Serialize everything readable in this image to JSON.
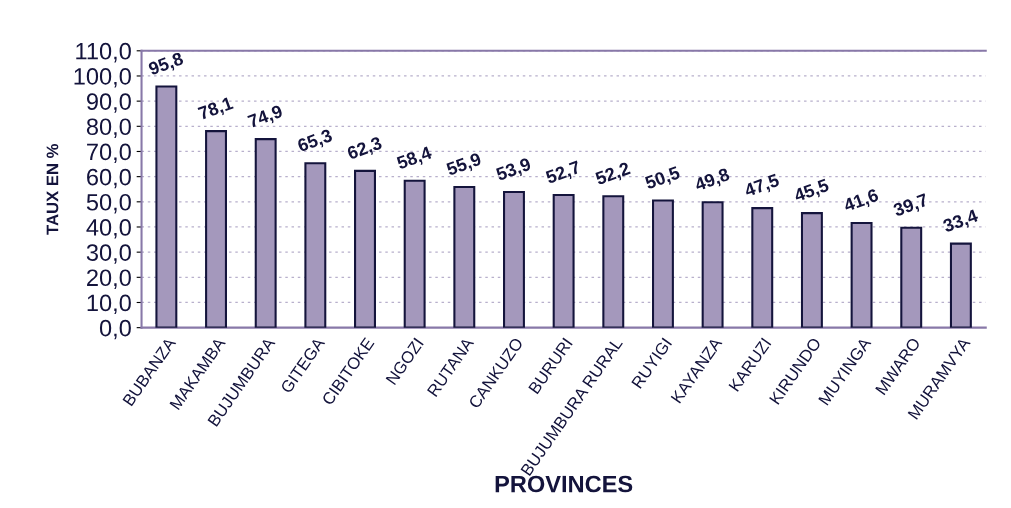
{
  "chart_data": {
    "type": "bar",
    "xlabel": "PROVINCES",
    "ylabel": "TAUX EN %",
    "categories": [
      "BUBANZA",
      "MAKAMBA",
      "BUJUMBURA",
      "GITEGA",
      "CIBITOKE",
      "NGOZI",
      "RUTANA",
      "CANKUZO",
      "BURURI",
      "BUJUMBURA RURAL",
      "RUYIGI",
      "KAYANZA",
      "KARUZI",
      "KIRUNDO",
      "MUYINGA",
      "MWARO",
      "MURAMVYA"
    ],
    "values": [
      95.8,
      78.1,
      74.9,
      65.3,
      62.3,
      58.4,
      55.9,
      53.9,
      52.7,
      52.2,
      50.5,
      49.8,
      47.5,
      45.5,
      41.6,
      39.7,
      33.4
    ],
    "value_labels": [
      "95,8",
      "78,1",
      "74,9",
      "65,3",
      "62,3",
      "58,4",
      "55,9",
      "53,9",
      "52,7",
      "52,2",
      "50,5",
      "49,8",
      "47,5",
      "45,5",
      "41,6",
      "39,7",
      "33,4"
    ],
    "color": "#a498bc",
    "ylim": [
      0,
      110
    ],
    "yticks": [
      {
        "value": 0,
        "label": "0,0"
      },
      {
        "value": 10,
        "label": "10,0"
      },
      {
        "value": 20,
        "label": "20,0"
      },
      {
        "value": 30,
        "label": "30,0"
      },
      {
        "value": 40,
        "label": "40,0"
      },
      {
        "value": 50,
        "label": "50,0"
      },
      {
        "value": 60,
        "label": "60,0"
      },
      {
        "value": 70,
        "label": "70,0"
      },
      {
        "value": 80,
        "label": "80,0"
      },
      {
        "value": 90,
        "label": "90,0"
      },
      {
        "value": 100,
        "label": "100,0"
      },
      {
        "value": 110,
        "label": "110,0"
      }
    ],
    "grid": "y",
    "legend": false
  }
}
